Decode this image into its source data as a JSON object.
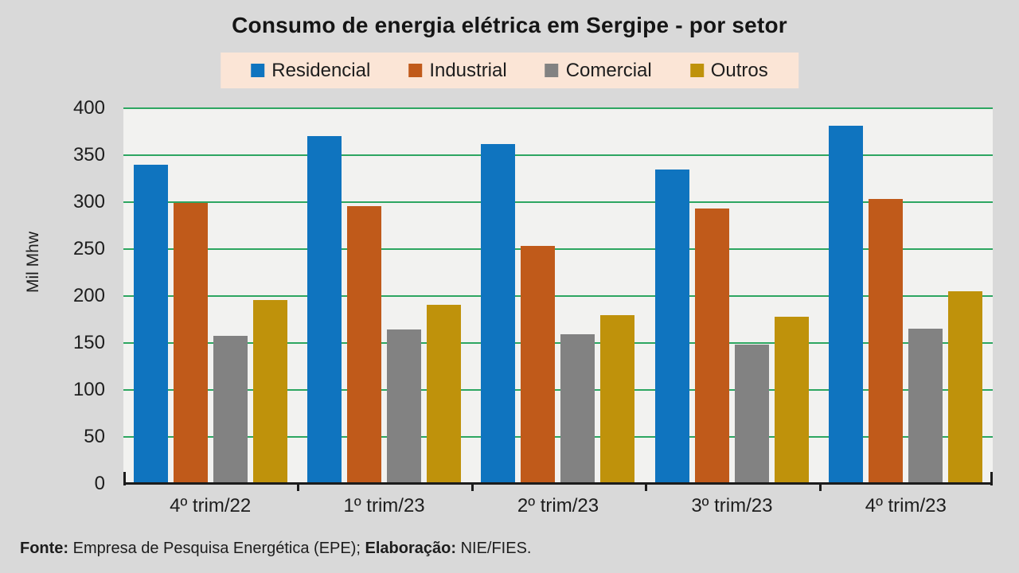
{
  "page": {
    "background": "#d9d9d9"
  },
  "chart_data": {
    "type": "bar",
    "title": "Consumo de energia elétrica em Sergipe - por setor",
    "xlabel": "",
    "ylabel": "Mil Mhw",
    "ylim": [
      0,
      400
    ],
    "ytick_step": 50,
    "grid": true,
    "legend_position": "top",
    "categories": [
      "4º trim/22",
      "1º trim/23",
      "2º trim/23",
      "3º trim/23",
      "4º trim/23"
    ],
    "series": [
      {
        "name": "Residencial",
        "color": "#0f74bf",
        "values": [
          340,
          370,
          362,
          335,
          381
        ]
      },
      {
        "name": "Industrial",
        "color": "#c05a1a",
        "values": [
          299,
          296,
          253,
          293,
          303
        ]
      },
      {
        "name": "Comercial",
        "color": "#828282",
        "values": [
          158,
          164,
          159,
          148,
          165
        ]
      },
      {
        "name": "Outros",
        "color": "#bf920b",
        "values": [
          196,
          191,
          180,
          178,
          205
        ]
      }
    ],
    "colors": {
      "gridline": "#2da661",
      "plot_background": "#f2f2f0",
      "legend_background": "#fbe5d6",
      "axis": "#1c1c1c"
    }
  },
  "footer": {
    "fonte_label": "Fonte:",
    "fonte_text": "Empresa de Pesquisa Energética (EPE);",
    "elaboracao_label": "Elaboração:",
    "elaboracao_text": "NIE/FIES."
  }
}
